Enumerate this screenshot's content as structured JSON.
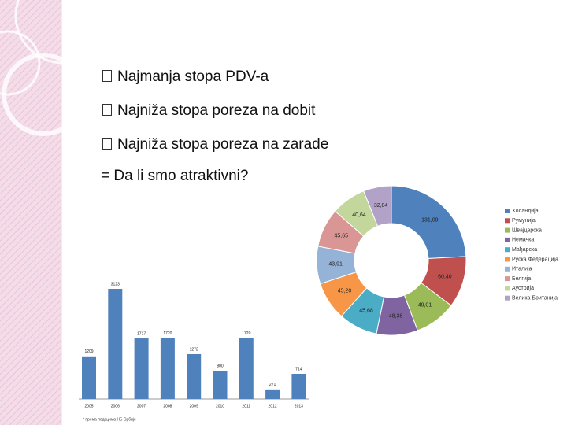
{
  "bullets": [
    "Najmanja stopa PDV-a",
    "Najniža stopa poreza na dobit",
    "Najniža stopa poreza na zarade"
  ],
  "question": "=  Da li smo atraktivni?",
  "chart_data": [
    {
      "type": "donut",
      "categories": [
        "Холандија",
        "Румунија",
        "Швајцарска",
        "Немачка",
        "Мађарска",
        "Руска Федерација",
        "Италија",
        "Белгија",
        "Аустрија",
        "Велика Британија"
      ],
      "values": [
        131.09,
        60.4,
        49.01,
        48.38,
        45.68,
        45.2,
        43.91,
        45.65,
        40.64,
        32.84
      ],
      "value_labels": [
        "131,09",
        "60,40",
        "49,01",
        "48,38",
        "45,68",
        "45,20",
        "43,91",
        "45,65",
        "40,64",
        "32,84"
      ],
      "colors": [
        "#4f81bd",
        "#c0504d",
        "#9bbb59",
        "#8064a2",
        "#4bacc6",
        "#f79646",
        "#95b3d7",
        "#d99694",
        "#c3d69b",
        "#b3a2c7"
      ],
      "legend": "right"
    },
    {
      "type": "bar",
      "categories": [
        "2005",
        "2006",
        "2007",
        "2008",
        "2009",
        "2010",
        "2011",
        "2012",
        "2013"
      ],
      "values": [
        1209,
        3123,
        1717,
        1720,
        1272,
        800,
        1720,
        271,
        714
      ],
      "color": "#4f81bd",
      "footnote": "* према подацима НБ Србије"
    }
  ]
}
